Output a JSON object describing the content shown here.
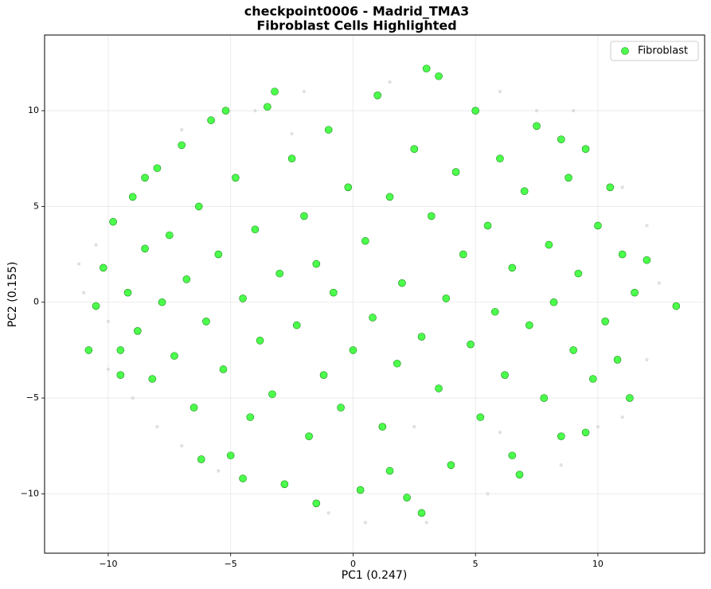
{
  "chart_data": {
    "type": "scatter",
    "title": "checkpoint0006 - Madrid_TMA3",
    "subtitle": "Fibroblast Cells Highlighted",
    "x_label": "PC1 (0.247)",
    "y_label": "PC2 (0.155)",
    "xlim": [
      -12.6,
      14.36
    ],
    "ylim": [
      -13.1,
      13.95
    ],
    "xticks": [
      {
        "value": -10,
        "label": "−10"
      },
      {
        "value": -5,
        "label": "−5"
      },
      0,
      5,
      10
    ],
    "yticks": [
      {
        "value": -10,
        "label": "−10"
      },
      {
        "value": -5,
        "label": "−5"
      },
      0,
      5,
      10
    ],
    "grid": true,
    "legend": "upper right",
    "series": [
      {
        "color": "#d9d9d9",
        "x": [
          -11,
          -10.5,
          -10,
          -9,
          -8,
          -7,
          -5.5,
          -4,
          -2,
          -1,
          0.5,
          1.5,
          3,
          5.5,
          6,
          7.5,
          8.5,
          10,
          11,
          12,
          12.5,
          12,
          11,
          -11.2,
          -10,
          -2.5,
          2.5,
          6,
          9,
          -7
        ],
        "y": [
          0.5,
          3,
          -3.5,
          -5,
          -6.5,
          9,
          -8.8,
          10,
          11,
          -11,
          -11.5,
          11.5,
          -11.5,
          -10,
          11,
          10,
          -8.5,
          -6.5,
          6,
          4,
          1,
          -3,
          -6,
          2,
          -1,
          8.8,
          -6.5,
          -6.8,
          10,
          -7.5
        ]
      },
      {
        "name": "Fibroblast",
        "color": "#00ff00",
        "x": [
          -10.5,
          -10.2,
          -9.8,
          -9.5,
          -9.2,
          -9,
          -8.8,
          -8.5,
          -8.2,
          -8,
          -7.8,
          -7.5,
          -7.3,
          -7,
          -6.8,
          -6.5,
          -6.3,
          -6,
          -5.8,
          -5.5,
          -5.3,
          -5,
          -4.8,
          -4.5,
          -4.2,
          -4,
          -3.8,
          -3.5,
          -3.3,
          -3,
          -2.8,
          -2.5,
          -2.3,
          -2,
          -1.8,
          -1.5,
          -1.2,
          -1,
          -0.8,
          -0.5,
          -0.2,
          0,
          0.3,
          0.5,
          0.8,
          1,
          1.2,
          1.5,
          1.8,
          2,
          2.2,
          2.5,
          2.8,
          3,
          3.2,
          3.5,
          3.8,
          4,
          4.2,
          4.5,
          4.8,
          5,
          5.2,
          5.5,
          5.8,
          6,
          6.2,
          6.5,
          6.8,
          7,
          7.2,
          7.5,
          7.8,
          8,
          8.2,
          8.5,
          8.8,
          9,
          9.2,
          9.5,
          9.8,
          10,
          10.3,
          10.5,
          10.8,
          11,
          11.3,
          11.5,
          12,
          13.2,
          -10.8,
          -9.5,
          -6.2,
          -4.5,
          2.8,
          6.5,
          9.5,
          -5.2,
          -3.2,
          3.5,
          -8.5,
          8.5,
          -1.5,
          1.5
        ],
        "y": [
          -0.2,
          1.8,
          4.2,
          -2.5,
          0.5,
          5.5,
          -1.5,
          2.8,
          -4,
          7,
          0,
          3.5,
          -2.8,
          8.2,
          1.2,
          -5.5,
          5,
          -1,
          9.5,
          2.5,
          -3.5,
          -8,
          6.5,
          0.2,
          -6,
          3.8,
          -2,
          10.2,
          -4.8,
          1.5,
          -9.5,
          7.5,
          -1.2,
          4.5,
          -7,
          2,
          -3.8,
          9,
          0.5,
          -5.5,
          6,
          -2.5,
          -9.8,
          3.2,
          -0.8,
          10.8,
          -6.5,
          5.5,
          -3.2,
          1,
          -10.2,
          8,
          -1.8,
          12.2,
          4.5,
          -4.5,
          0.2,
          -8.5,
          6.8,
          2.5,
          -2.2,
          10,
          -6,
          4,
          -0.5,
          7.5,
          -3.8,
          1.8,
          -9,
          5.8,
          -1.2,
          9.2,
          -5,
          3,
          0,
          -7,
          6.5,
          -2.5,
          1.5,
          8,
          -4,
          4,
          -1,
          6,
          -3,
          2.5,
          -5,
          0.5,
          2.2,
          -0.2,
          -2.5,
          -3.8,
          -8.2,
          -9.2,
          -11,
          -8,
          -6.8,
          10,
          11,
          11.8,
          6.5,
          8.5,
          -10.5,
          -8.8
        ]
      }
    ]
  }
}
